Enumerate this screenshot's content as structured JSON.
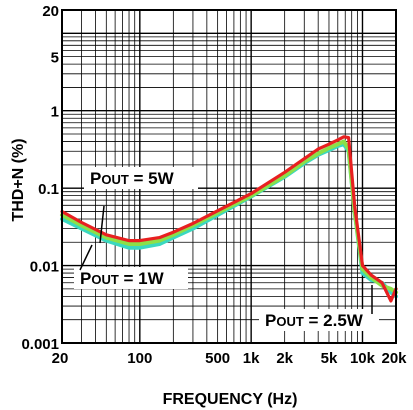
{
  "chart_data": {
    "type": "line",
    "xlabel": "FREQUENCY (Hz)",
    "ylabel": "THD+N (%)",
    "xscale": "log",
    "yscale": "log",
    "xlim": [
      20,
      20000
    ],
    "ylim": [
      0.001,
      20
    ],
    "grid": true,
    "x_ticks": [
      {
        "value": 20,
        "label": "20"
      },
      {
        "value": 100,
        "label": "100"
      },
      {
        "value": 500,
        "label": "500"
      },
      {
        "value": 1000,
        "label": "1k"
      },
      {
        "value": 2000,
        "label": "2k"
      },
      {
        "value": 5000,
        "label": "5k"
      },
      {
        "value": 10000,
        "label": "10k"
      },
      {
        "value": 20000,
        "label": "20k"
      }
    ],
    "y_ticks": [
      {
        "value": 20,
        "label": "20"
      },
      {
        "value": 5,
        "label": "5"
      },
      {
        "value": 1,
        "label": "1"
      },
      {
        "value": 0.1,
        "label": "0.1"
      },
      {
        "value": 0.01,
        "label": "0.01"
      },
      {
        "value": 0.001,
        "label": "0.001"
      }
    ],
    "annotations": [
      {
        "main": "P",
        "sub": "OUT",
        "rest": " = 5W"
      },
      {
        "main": "P",
        "sub": "OUT",
        "rest": " = 1W"
      },
      {
        "main": "P",
        "sub": "OUT",
        "rest": " = 2.5W"
      }
    ],
    "series": [
      {
        "color": "#3ad8c0",
        "x": [
          20,
          30,
          50,
          80,
          100,
          150,
          200,
          300,
          500,
          1000,
          2000,
          3000,
          4000,
          5000,
          6000,
          6800,
          7500,
          8500,
          10000,
          12000,
          15000,
          18000,
          20000
        ],
        "y": [
          0.04,
          0.03,
          0.021,
          0.017,
          0.017,
          0.019,
          0.023,
          0.03,
          0.045,
          0.078,
          0.14,
          0.21,
          0.27,
          0.31,
          0.35,
          0.37,
          0.3,
          0.05,
          0.008,
          0.0065,
          0.006,
          0.0045,
          0.004
        ]
      },
      {
        "color": "#8ce048",
        "x": [
          20,
          30,
          50,
          80,
          100,
          150,
          200,
          300,
          500,
          1000,
          2000,
          3000,
          4000,
          5000,
          6000,
          6800,
          7500,
          8500,
          10000,
          12000,
          15000,
          18000,
          20000
        ],
        "y": [
          0.045,
          0.033,
          0.023,
          0.019,
          0.019,
          0.021,
          0.025,
          0.033,
          0.048,
          0.08,
          0.145,
          0.22,
          0.28,
          0.33,
          0.37,
          0.4,
          0.32,
          0.05,
          0.009,
          0.007,
          0.0055,
          0.005,
          0.0045
        ]
      },
      {
        "color": "#e82020",
        "x": [
          20,
          30,
          50,
          80,
          100,
          150,
          200,
          300,
          500,
          1000,
          2000,
          3000,
          4000,
          5000,
          6000,
          6800,
          7500,
          8500,
          10000,
          12000,
          15000,
          18000,
          20000
        ],
        "y": [
          0.05,
          0.036,
          0.025,
          0.021,
          0.021,
          0.023,
          0.027,
          0.035,
          0.051,
          0.085,
          0.16,
          0.24,
          0.32,
          0.37,
          0.42,
          0.46,
          0.45,
          0.06,
          0.01,
          0.0075,
          0.006,
          0.0035,
          0.005
        ]
      }
    ]
  }
}
